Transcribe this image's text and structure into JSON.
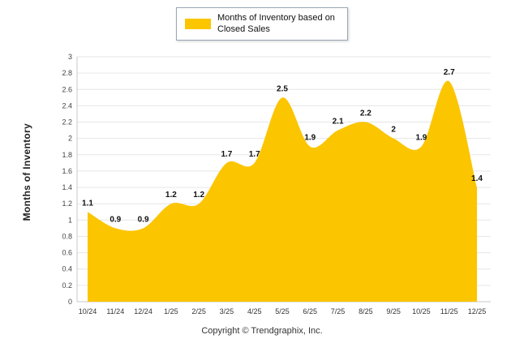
{
  "legend": {
    "label": "Months of Inventory based on Closed Sales",
    "swatch_color": "#FBC500"
  },
  "footer": {
    "copyright": "Copyright © Trendgraphix, Inc."
  },
  "chart_data": {
    "type": "area",
    "title": "",
    "categories": [
      "10/24",
      "11/24",
      "12/24",
      "1/25",
      "2/25",
      "3/25",
      "4/25",
      "5/25",
      "6/25",
      "7/25",
      "8/25",
      "9/25",
      "10/25",
      "11/25",
      "12/25"
    ],
    "values": [
      1.1,
      0.9,
      0.9,
      1.2,
      1.2,
      1.7,
      1.7,
      2.5,
      1.9,
      2.1,
      2.2,
      2,
      1.9,
      2.7,
      1.4
    ],
    "series_name": "Months of Inventory based on Closed Sales",
    "xlabel": "",
    "ylabel": "Months of Inventory",
    "ylim": [
      0,
      3
    ],
    "ytick_step": 0.2,
    "fill_color": "#FBC500",
    "grid": true,
    "legend_position": "top",
    "smooth": true,
    "data_labels": true
  }
}
